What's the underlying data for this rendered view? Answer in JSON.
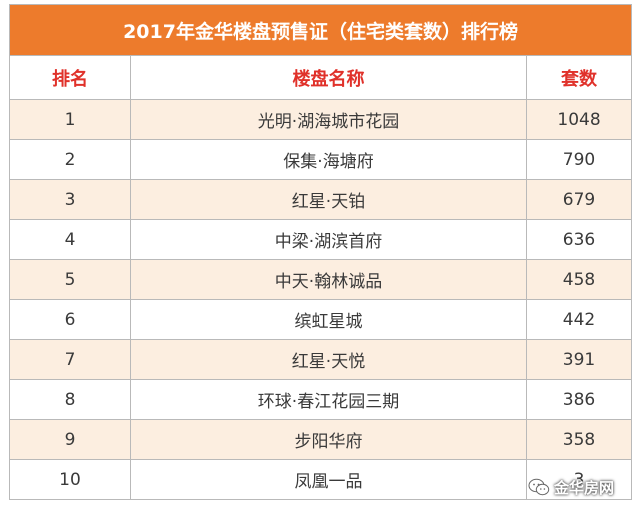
{
  "table": {
    "title": "2017年金华楼盘预售证（住宅类套数）排行榜",
    "headers": {
      "rank": "排名",
      "name": "楼盘名称",
      "count": "套数"
    },
    "rows": [
      {
        "rank": "1",
        "name": "光明·湖海城市花园",
        "count": "1048"
      },
      {
        "rank": "2",
        "name": "保集·海塘府",
        "count": "790"
      },
      {
        "rank": "3",
        "name": "红星·天铂",
        "count": "679"
      },
      {
        "rank": "4",
        "name": "中梁·湖滨首府",
        "count": "636"
      },
      {
        "rank": "5",
        "name": "中天·翰林诚品",
        "count": "458"
      },
      {
        "rank": "6",
        "name": "缤虹星城",
        "count": "442"
      },
      {
        "rank": "7",
        "name": "红星·天悦",
        "count": "391"
      },
      {
        "rank": "8",
        "name": "环球·春江花园三期",
        "count": "386"
      },
      {
        "rank": "9",
        "name": "步阳华府",
        "count": "358"
      },
      {
        "rank": "10",
        "name": "凤凰一品",
        "count": "3"
      }
    ]
  },
  "colors": {
    "title_bg": "#ed7b2c",
    "header_text": "#e0312a",
    "stripe": "#fceee0",
    "border": "#b9b9b9"
  },
  "watermark": {
    "text": "金华房网",
    "icon": "wechat-icon"
  }
}
